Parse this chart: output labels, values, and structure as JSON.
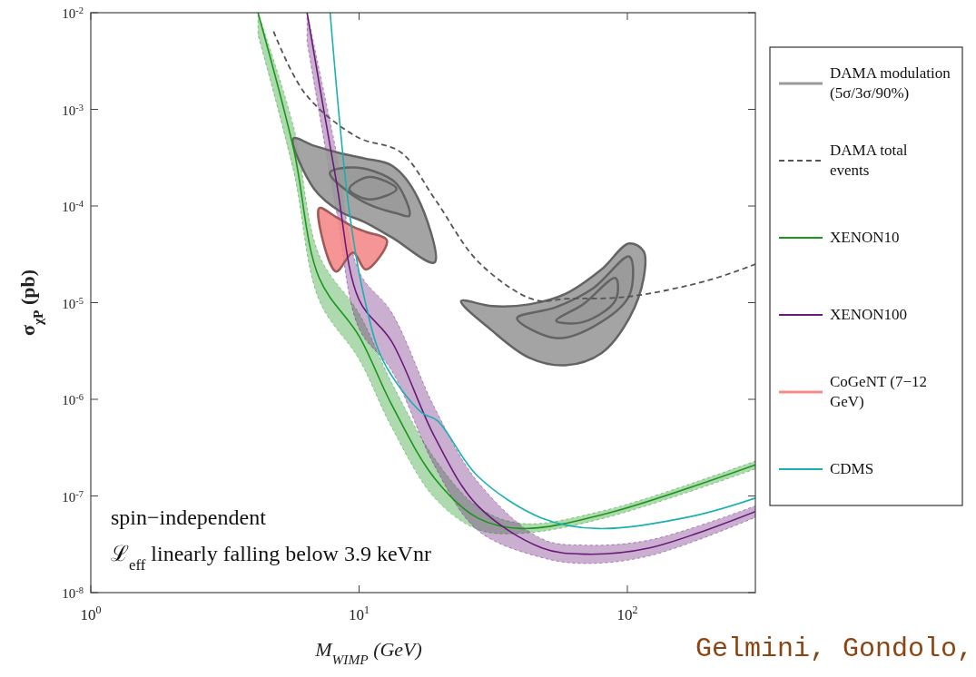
{
  "chart_data": {
    "type": "line",
    "xlabel": "M$_{WIMP}$ (GeV)",
    "ylabel": "σ$_{χP}$ (pb)",
    "log": "xy",
    "legend": "right",
    "grid": false,
    "xlim": [
      1,
      300
    ],
    "ylim": [
      1e-08,
      0.01
    ],
    "xticks": [
      {
        "value": 1,
        "label": "10$^{0}$"
      },
      {
        "value": 10,
        "label": "10$^{1}$"
      },
      {
        "value": 100,
        "label": "10$^{2}$"
      }
    ],
    "yticks": [
      {
        "value": 1e-08,
        "label": "10$^{-8}$"
      },
      {
        "value": 1e-07,
        "label": "10$^{-7}$"
      },
      {
        "value": 1e-06,
        "label": "10$^{-6}$"
      },
      {
        "value": 1e-05,
        "label": "10$^{-5}$"
      },
      {
        "value": 0.0001,
        "label": "10$^{-4}$"
      },
      {
        "value": 0.001,
        "label": "10$^{-3}$"
      },
      {
        "value": 0.01,
        "label": "10$^{-2}$"
      }
    ],
    "series": [
      {
        "name": "DAMA modulation (5σ/3σ/90%)",
        "type": "area",
        "color": "#9a9a9a",
        "x": [
          5.69,
          6.8,
          8.55,
          10.5,
          13.3,
          16.5,
          19.1,
          13.3,
          10.5,
          8.55,
          6.8
        ],
        "values": [
          0.0005,
          0.00042,
          0.00035,
          0.00031,
          0.00026,
          0.000123,
          2.6e-05,
          4.7e-05,
          6.8e-05,
          8.7e-05,
          0.00015
        ]
      },
      {
        "name": "DAMA total events",
        "line_style": "dashed",
        "color": "#555555",
        "x": [
          4.8,
          6.3,
          9.8,
          14.3,
          19.2,
          28,
          45,
          60,
          100,
          200,
          300
        ],
        "values": [
          0.0064,
          0.00145,
          0.00052,
          0.00036,
          0.000117,
          2.6e-05,
          1.07e-05,
          1.1e-05,
          1.15e-05,
          1.7e-05,
          2.5e-05
        ]
      },
      {
        "name": "XENON10",
        "color": "#1a961a",
        "x": [
          4.2,
          5.7,
          7.1,
          10,
          13.2,
          19.2,
          27.7,
          40.3,
          84,
          300
        ],
        "values": [
          0.01,
          0.00039,
          1.8e-05,
          4.5e-06,
          8.9e-07,
          1.5e-07,
          5.9e-08,
          4.6e-08,
          6.6e-08,
          2.1e-07
        ],
        "lower": [
          0.0059,
          0.00023,
          1.06e-05,
          2.6e-06,
          5.2e-07,
          9.4e-08,
          4.5e-08,
          4.1e-08,
          6e-08,
          1.9e-07
        ],
        "upper": [
          0.01,
          0.00066,
          3.1e-05,
          7.7e-06,
          1.5e-06,
          2.4e-07,
          7.7e-08,
          5.2e-08,
          7.2e-08,
          2.3e-07
        ]
      },
      {
        "name": "XENON100",
        "color": "#6a1b7a",
        "x": [
          6.4,
          8.2,
          10,
          13.2,
          19.2,
          27.7,
          48,
          69.5,
          121,
          300
        ],
        "values": [
          0.01,
          0.00019,
          1.07e-05,
          4e-06,
          4e-07,
          7.9e-08,
          2.9e-08,
          2.5e-08,
          2.9e-08,
          6.9e-08
        ],
        "lower": [
          0.005,
          9.5e-05,
          5.4e-06,
          2e-06,
          2e-07,
          4.4e-08,
          2.3e-08,
          2e-08,
          2.4e-08,
          6e-08
        ],
        "upper": [
          0.01,
          0.00038,
          2.1e-05,
          8e-06,
          8e-07,
          1.4e-07,
          3.6e-08,
          3.1e-08,
          3.5e-08,
          7.9e-08
        ]
      },
      {
        "name": "CoGeNT (7−12 GeV)",
        "type": "area",
        "color": "#f48a8a",
        "x": [
          7.1,
          8.2,
          9.5,
          10.6,
          12.7,
          10.6,
          9.5,
          8.2
        ],
        "values": [
          9.5e-05,
          7.7e-05,
          6.1e-05,
          5.4e-05,
          4.4e-05,
          2.2e-05,
          3.3e-05,
          2.1e-05
        ]
      },
      {
        "name": "CDMS",
        "color": "#1ab0b0",
        "x": [
          7.8,
          9.2,
          10.5,
          12.3,
          17.1,
          19.6,
          27.7,
          48,
          78,
          176,
          300
        ],
        "values": [
          0.01,
          8.7e-05,
          1.07e-05,
          2.5e-06,
          7.3e-07,
          6e-07,
          1.6e-07,
          5.9e-08,
          4.6e-08,
          6.2e-08,
          9.5e-08
        ]
      },
      {
        "type": "area",
        "color": "#9a9a9a",
        "x": [
          7.78,
          9.3,
          11.3,
          13.8,
          15.4,
          13.8,
          11.3,
          9.3
        ],
        "values": [
          0.00022,
          0.00025,
          0.00023,
          0.00017,
          7.9e-05,
          8.4e-05,
          9.9e-05,
          0.000134
        ]
      },
      {
        "type": "area",
        "color": "#9a9a9a",
        "x": [
          9.2,
          10.9,
          13.8,
          10.9
        ],
        "values": [
          0.00015,
          0.0002,
          0.00015,
          0.000117
        ]
      },
      {
        "type": "area",
        "color": "#9a9a9a",
        "x": [
          24,
          31.4,
          43,
          58.7,
          80,
          101.6,
          115,
          115,
          101.6,
          80,
          58.7,
          43,
          31.4
        ],
        "values": [
          1.04e-05,
          9.2e-06,
          9.6e-06,
          1.23e-05,
          2.2e-05,
          4.1e-05,
          3.4e-05,
          1.8e-05,
          6.9e-06,
          3e-06,
          2.25e-06,
          2.7e-06,
          5.1e-06
        ]
      },
      {
        "type": "area",
        "color": "#9a9a9a",
        "x": [
          38.8,
          54.3,
          74.3,
          101.6,
          101.6,
          74.3,
          54.3
        ],
        "values": [
          6.9e-06,
          9e-06,
          1.4e-05,
          3e-05,
          1.18e-05,
          5.6e-06,
          4.3e-06
        ]
      },
      {
        "type": "area",
        "color": "#9a9a9a",
        "x": [
          54.3,
          68.4,
          90.3,
          90.3,
          68.4
        ],
        "values": [
          6.5e-06,
          9.6e-06,
          1.8e-05,
          1.06e-05,
          6.3e-06
        ]
      }
    ],
    "annotations": [
      "spin−independent",
      "ℒ$_{eff}$ linearly falling below 3.9 keVnr",
      "Gelmini, Gondolo,"
    ]
  }
}
